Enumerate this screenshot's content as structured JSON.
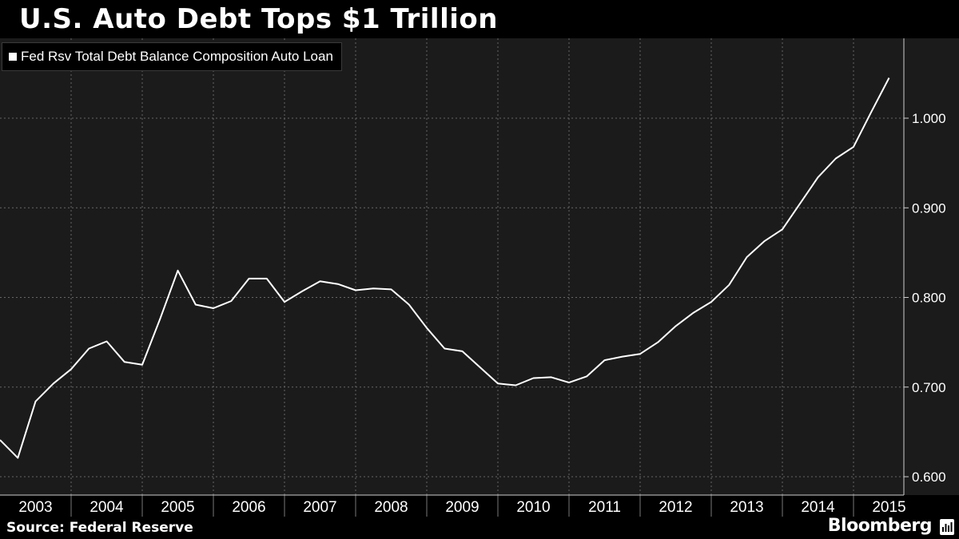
{
  "title": "U.S. Auto Debt Tops $1 Trillion",
  "legend_label": "Fed Rsv Total Debt Balance Composition Auto Loan",
  "source": "Source: Federal Reserve",
  "brand": "Bloomberg",
  "icons": {
    "brand": "bloomberg-chart-icon",
    "legend": "square-swatch-icon"
  },
  "colors": {
    "background": "#000000",
    "plot": "#1b1b1b",
    "line": "#ffffff",
    "grid": "#666666"
  },
  "chart_data": {
    "type": "line",
    "title": "U.S. Auto Debt Tops $1 Trillion",
    "xlabel": "",
    "ylabel": "",
    "grid": true,
    "legend_position": "top-left",
    "y_axis_side": "right",
    "ylim": [
      0.58,
      1.08
    ],
    "yticks": [
      0.6,
      0.7,
      0.8,
      0.9,
      1.0
    ],
    "ytick_labels": [
      "0.600",
      "0.700",
      "0.800",
      "0.900",
      "1.000"
    ],
    "year_labels": [
      "2003",
      "2004",
      "2005",
      "2006",
      "2007",
      "2008",
      "2009",
      "2010",
      "2011",
      "2012",
      "2013",
      "2014",
      "2015"
    ],
    "series": [
      {
        "name": "Fed Rsv Total Debt Balance Composition Auto Loan",
        "x": [
          "2003-Q1",
          "2003-Q2",
          "2003-Q3",
          "2003-Q4",
          "2004-Q1",
          "2004-Q2",
          "2004-Q3",
          "2004-Q4",
          "2005-Q1",
          "2005-Q2",
          "2005-Q3",
          "2005-Q4",
          "2006-Q1",
          "2006-Q2",
          "2006-Q3",
          "2006-Q4",
          "2007-Q1",
          "2007-Q2",
          "2007-Q3",
          "2007-Q4",
          "2008-Q1",
          "2008-Q2",
          "2008-Q3",
          "2008-Q4",
          "2009-Q1",
          "2009-Q2",
          "2009-Q3",
          "2009-Q4",
          "2010-Q1",
          "2010-Q2",
          "2010-Q3",
          "2010-Q4",
          "2011-Q1",
          "2011-Q2",
          "2011-Q3",
          "2011-Q4",
          "2012-Q1",
          "2012-Q2",
          "2012-Q3",
          "2012-Q4",
          "2013-Q1",
          "2013-Q2",
          "2013-Q3",
          "2013-Q4",
          "2014-Q1",
          "2014-Q2",
          "2014-Q3",
          "2014-Q4",
          "2015-Q1",
          "2015-Q2"
        ],
        "values": [
          0.641,
          0.621,
          0.684,
          0.704,
          0.72,
          0.743,
          0.751,
          0.728,
          0.725,
          0.776,
          0.83,
          0.792,
          0.788,
          0.796,
          0.821,
          0.821,
          0.795,
          0.807,
          0.818,
          0.815,
          0.808,
          0.81,
          0.809,
          0.792,
          0.766,
          0.743,
          0.74,
          0.722,
          0.704,
          0.702,
          0.71,
          0.711,
          0.705,
          0.712,
          0.73,
          0.734,
          0.737,
          0.75,
          0.768,
          0.783,
          0.795,
          0.814,
          0.845,
          0.863,
          0.876,
          0.905,
          0.934,
          0.955,
          0.968,
          1.007
        ]
      }
    ],
    "final_point": {
      "x": "2015-Q3",
      "value": 1.045
    }
  }
}
